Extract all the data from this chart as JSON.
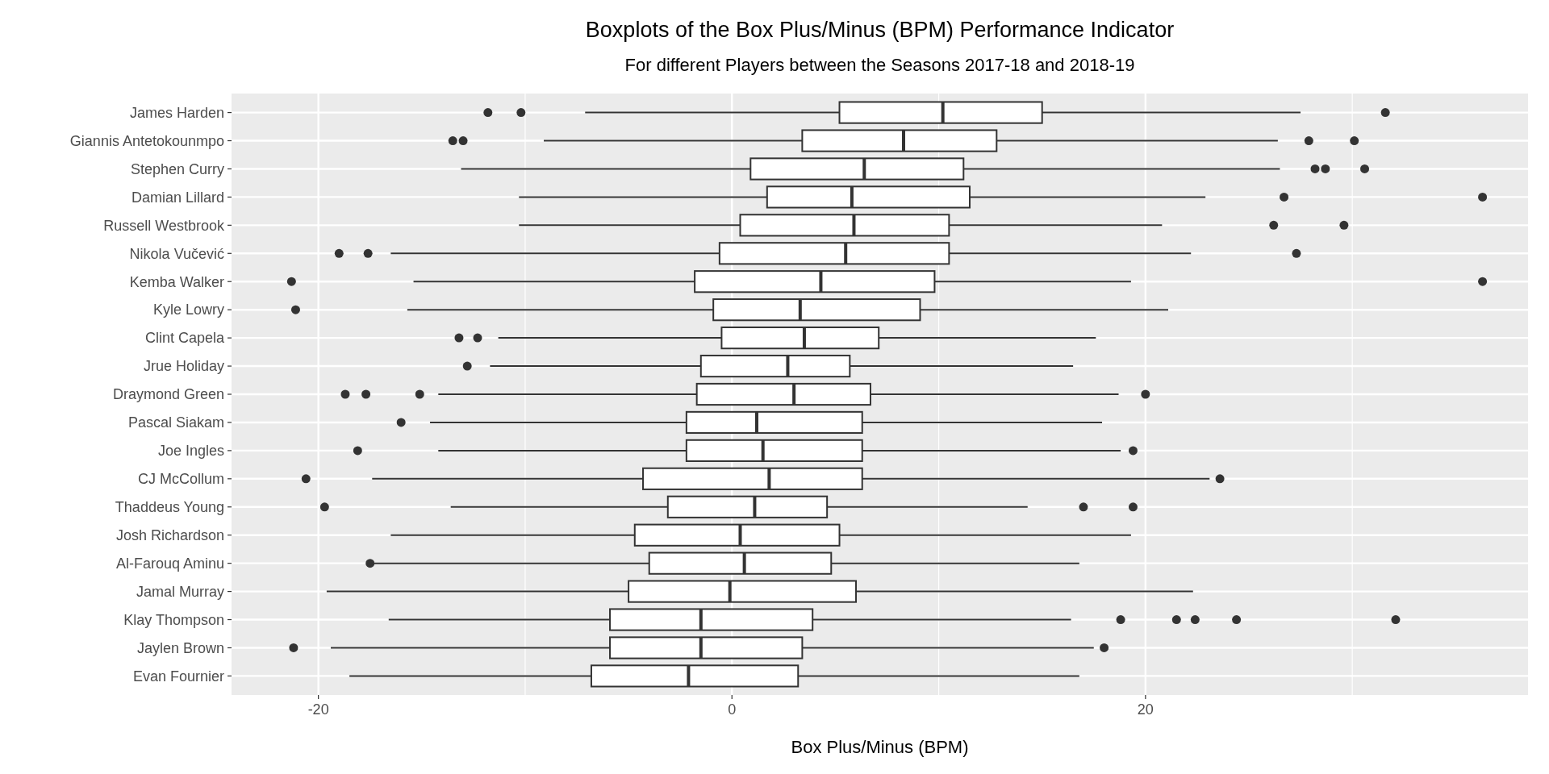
{
  "chart_data": {
    "type": "box",
    "title": "Boxplots of the Box Plus/Minus (BPM) Performance Indicator",
    "subtitle": "For different Players between the Seasons 2017-18 and 2018-19",
    "xlabel": "Box Plus/Minus (BPM)",
    "orientation": "horizontal",
    "grid": true,
    "xlim": [
      -24.2,
      38.5
    ],
    "xticks": [
      -20,
      0,
      20
    ],
    "categories": [
      "James Harden",
      "Giannis Antetokounmpo",
      "Stephen Curry",
      "Damian Lillard",
      "Russell Westbrook",
      "Nikola Vučević",
      "Kemba Walker",
      "Kyle Lowry",
      "Clint Capela",
      "Jrue Holiday",
      "Draymond Green",
      "Pascal Siakam",
      "Joe Ingles",
      "CJ McCollum",
      "Thaddeus Young",
      "Josh Richardson",
      "Al-Farouq Aminu",
      "Jamal Murray",
      "Klay Thompson",
      "Jaylen Brown",
      "Evan Fournier"
    ],
    "boxes": [
      {
        "low": -7.1,
        "q1": 5.2,
        "median": 10.2,
        "q3": 15.0,
        "high": 27.5,
        "outliers": [
          -11.8,
          -10.2,
          31.6
        ]
      },
      {
        "low": -9.1,
        "q1": 3.4,
        "median": 8.3,
        "q3": 12.8,
        "high": 26.4,
        "outliers": [
          -13.5,
          -13.0,
          27.9,
          30.1
        ]
      },
      {
        "low": -13.1,
        "q1": 0.9,
        "median": 6.4,
        "q3": 11.2,
        "high": 26.5,
        "outliers": [
          28.2,
          28.7,
          30.6
        ]
      },
      {
        "low": -10.3,
        "q1": 1.7,
        "median": 5.8,
        "q3": 11.5,
        "high": 22.9,
        "outliers": [
          26.7,
          36.3
        ]
      },
      {
        "low": -10.3,
        "q1": 0.4,
        "median": 5.9,
        "q3": 10.5,
        "high": 20.8,
        "outliers": [
          26.2,
          29.6
        ]
      },
      {
        "low": -16.5,
        "q1": -0.6,
        "median": 5.5,
        "q3": 10.5,
        "high": 22.2,
        "outliers": [
          -19.0,
          -17.6,
          27.3
        ]
      },
      {
        "low": -15.4,
        "q1": -1.8,
        "median": 4.3,
        "q3": 9.8,
        "high": 19.3,
        "outliers": [
          -21.3,
          36.3
        ]
      },
      {
        "low": -15.7,
        "q1": -0.9,
        "median": 3.3,
        "q3": 9.1,
        "high": 21.1,
        "outliers": [
          -21.1
        ]
      },
      {
        "low": -11.3,
        "q1": -0.5,
        "median": 3.5,
        "q3": 7.1,
        "high": 17.6,
        "outliers": [
          -13.2,
          -12.3
        ]
      },
      {
        "low": -11.7,
        "q1": -1.5,
        "median": 2.7,
        "q3": 5.7,
        "high": 16.5,
        "outliers": [
          -12.8
        ]
      },
      {
        "low": -14.2,
        "q1": -1.7,
        "median": 3.0,
        "q3": 6.7,
        "high": 18.7,
        "outliers": [
          -18.7,
          -17.7,
          -15.1,
          20.0
        ]
      },
      {
        "low": -14.6,
        "q1": -2.2,
        "median": 1.2,
        "q3": 6.3,
        "high": 17.9,
        "outliers": [
          -16.0
        ]
      },
      {
        "low": -14.2,
        "q1": -2.2,
        "median": 1.5,
        "q3": 6.3,
        "high": 18.8,
        "outliers": [
          -18.1,
          19.4
        ]
      },
      {
        "low": -17.4,
        "q1": -4.3,
        "median": 1.8,
        "q3": 6.3,
        "high": 23.1,
        "outliers": [
          -20.6,
          23.6
        ]
      },
      {
        "low": -13.6,
        "q1": -3.1,
        "median": 1.1,
        "q3": 4.6,
        "high": 14.3,
        "outliers": [
          -19.7,
          17.0,
          19.4
        ]
      },
      {
        "low": -16.5,
        "q1": -4.7,
        "median": 0.4,
        "q3": 5.2,
        "high": 19.3
      },
      {
        "low": -17.3,
        "q1": -4.0,
        "median": 0.6,
        "q3": 4.8,
        "high": 16.8,
        "outliers": [
          -17.5
        ]
      },
      {
        "low": -19.6,
        "q1": -5.0,
        "median": -0.1,
        "q3": 6.0,
        "high": 22.3
      },
      {
        "low": -16.6,
        "q1": -5.9,
        "median": -1.5,
        "q3": 3.9,
        "high": 16.4,
        "outliers": [
          18.8,
          21.5,
          22.4,
          24.4,
          32.1
        ]
      },
      {
        "low": -19.4,
        "q1": -5.9,
        "median": -1.5,
        "q3": 3.4,
        "high": 17.5,
        "outliers": [
          -21.2,
          18.0
        ]
      },
      {
        "low": -18.5,
        "q1": -6.8,
        "median": -2.1,
        "q3": 3.2,
        "high": 16.8
      }
    ]
  }
}
